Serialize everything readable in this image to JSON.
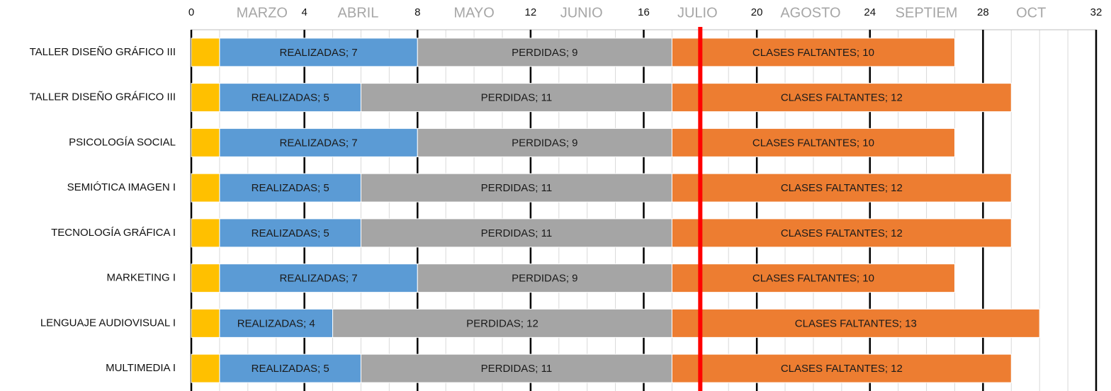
{
  "chart_data": {
    "type": "stacked_barh",
    "categories": [
      "TALLER DISEÑO GRÁFICO III",
      "TALLER DISEÑO GRÁFICO III",
      "PSICOLOGÍA SOCIAL",
      "SEMIÓTICA IMAGEN I",
      "TECNOLOGÍA GRÁFICA I",
      "MARKETING I",
      "LENGUAJE AUDIOVISUAL I",
      "MULTIMEDIA I"
    ],
    "series": [
      {
        "color": "#ffc000",
        "values": [
          1,
          1,
          1,
          1,
          1,
          1,
          1,
          1
        ]
      },
      {
        "name": "REALIZADAS",
        "color": "#5b9bd5",
        "values": [
          7,
          5,
          7,
          5,
          5,
          7,
          4,
          5
        ],
        "value_labels": [
          "REALIZADAS; 7",
          "REALIZADAS; 5",
          "REALIZADAS; 7",
          "REALIZADAS; 5",
          "REALIZADAS; 5",
          "REALIZADAS; 7",
          "REALIZADAS; 4",
          "REALIZADAS; 5"
        ]
      },
      {
        "name": "PERDIDAS",
        "color": "#a5a5a5",
        "values": [
          9,
          11,
          9,
          11,
          11,
          9,
          12,
          11
        ],
        "value_labels": [
          "PERDIDAS; 9",
          "PERDIDAS; 11",
          "PERDIDAS; 9",
          "PERDIDAS; 11",
          "PERDIDAS; 11",
          "PERDIDAS; 9",
          "PERDIDAS; 12",
          "PERDIDAS; 11"
        ]
      },
      {
        "name": "CLASES FALTANTES",
        "color": "#ed7d31",
        "values": [
          10,
          12,
          10,
          12,
          12,
          10,
          13,
          12
        ],
        "value_labels": [
          "CLASES FALTANTES; 10",
          "CLASES FALTANTES; 12",
          "CLASES FALTANTES; 10",
          "CLASES FALTANTES; 12",
          "CLASES FALTANTES; 12",
          "CLASES FALTANTES; 10",
          "CLASES FALTANTES; 13",
          "CLASES FALTANTES; 12"
        ]
      }
    ],
    "xlim": [
      0,
      32
    ],
    "xticks": [
      0,
      4,
      8,
      12,
      16,
      20,
      24,
      28,
      32
    ],
    "x2lim": [
      0,
      32
    ],
    "x2ticks": [
      {
        "value": 2.5,
        "label": "MARZO"
      },
      {
        "value": 5.9,
        "label": "ABRIL"
      },
      {
        "value": 10,
        "label": "MAYO"
      },
      {
        "value": 13.8,
        "label": "JUNIO"
      },
      {
        "value": 17.9,
        "label": "JULIO"
      },
      {
        "value": 21.9,
        "label": "AGOSTO"
      },
      {
        "value": 26,
        "label": "SEPTIEM"
      },
      {
        "value": 29.7,
        "label": "OCT"
      }
    ],
    "reference_line": {
      "value": 18,
      "color": "#ff0000"
    },
    "grid": true
  }
}
